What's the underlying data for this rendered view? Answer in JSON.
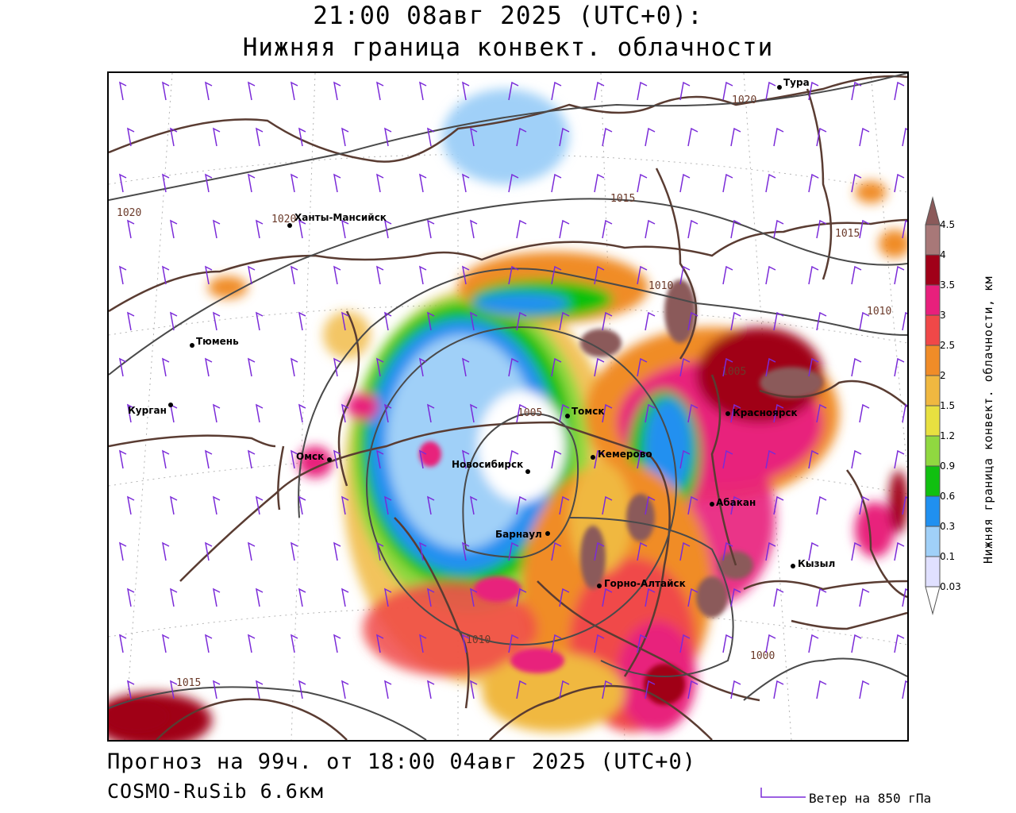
{
  "header": {
    "title_line1": "21:00 08авг 2025 (UTC+0):",
    "title_line2": "Нижняя граница конвект. облачности"
  },
  "footer": {
    "forecast": "Прогноз на 99ч. от 18:00 04авг 2025 (UTC+0)",
    "model": "COSMO-RuSib 6.6км",
    "wind_legend": "Ветер на 850 гПа"
  },
  "colorbar": {
    "title": "Нижняя граница конвект. облачности, км",
    "ticks": [
      "4.5",
      "4",
      "3.5",
      "3",
      "2.5",
      "2",
      "1.5",
      "1.2",
      "0.9",
      "0.6",
      "0.3",
      "0.1",
      "0.03"
    ],
    "colors": [
      "#8b5a5a",
      "#a87878",
      "#a00018",
      "#e8207c",
      "#f04848",
      "#f08c28",
      "#f0b840",
      "#e8e040",
      "#90d840",
      "#10c010",
      "#2090f0",
      "#a0d0f8",
      "#e0e0ff",
      "#ffffff"
    ]
  },
  "cities": [
    {
      "name": "Тура"
    },
    {
      "name": "Ханты-Мансийск"
    },
    {
      "name": "Тюмень"
    },
    {
      "name": "Курган"
    },
    {
      "name": "Омск"
    },
    {
      "name": "Новосибирск"
    },
    {
      "name": "Томск"
    },
    {
      "name": "Кемерово"
    },
    {
      "name": "Красноярск"
    },
    {
      "name": "Абакан"
    },
    {
      "name": "Барнаул"
    },
    {
      "name": "Горно-Алтайск"
    },
    {
      "name": "Кызыл"
    }
  ],
  "isobar_labels": [
    "1020",
    "1020",
    "1020",
    "1015",
    "1015",
    "1015",
    "1010",
    "1010",
    "1010",
    "1005",
    "1005",
    "1000"
  ],
  "colors": {
    "borders": "#5a3c32",
    "isobars": "#4a4a4a",
    "wind_barbs": "#7b2bd8",
    "grid": "#b0b0b0"
  }
}
